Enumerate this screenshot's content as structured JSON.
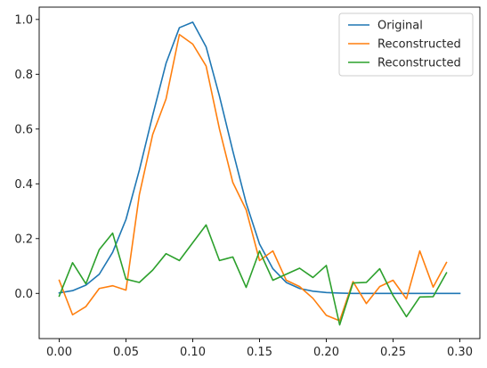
{
  "chart_data": {
    "type": "line",
    "title": "",
    "xlabel": "",
    "ylabel": "",
    "xlim": [
      -0.015,
      0.315
    ],
    "ylim": [
      -0.165,
      1.045
    ],
    "xticks": [
      0.0,
      0.05,
      0.1,
      0.15,
      0.2,
      0.25,
      0.3
    ],
    "xtick_labels": [
      "0.00",
      "0.05",
      "0.10",
      "0.15",
      "0.20",
      "0.25",
      "0.30"
    ],
    "yticks": [
      0.0,
      0.2,
      0.4,
      0.6,
      0.8,
      1.0
    ],
    "ytick_labels": [
      "0.0",
      "0.2",
      "0.4",
      "0.6",
      "0.8",
      "1.0"
    ],
    "grid": false,
    "legend_position": "top-right",
    "series": [
      {
        "name": "Original",
        "color": "#1f77b4",
        "x": [
          0.0,
          0.01,
          0.02,
          0.03,
          0.04,
          0.05,
          0.06,
          0.07,
          0.08,
          0.09,
          0.1,
          0.11,
          0.12,
          0.13,
          0.14,
          0.15,
          0.16,
          0.17,
          0.18,
          0.19,
          0.2,
          0.21,
          0.22,
          0.23,
          0.24,
          0.25,
          0.26,
          0.27,
          0.28,
          0.29,
          0.3
        ],
        "y": [
          0.002,
          0.01,
          0.03,
          0.07,
          0.15,
          0.27,
          0.45,
          0.65,
          0.84,
          0.97,
          0.99,
          0.9,
          0.72,
          0.52,
          0.33,
          0.18,
          0.09,
          0.04,
          0.018,
          0.008,
          0.003,
          0.001,
          0.0,
          0.0,
          0.0,
          0.0,
          0.0,
          0.0,
          0.0,
          0.0,
          0.0
        ]
      },
      {
        "name": "Reconstructed",
        "color": "#ff7f0e",
        "x": [
          0.0,
          0.01,
          0.02,
          0.03,
          0.04,
          0.05,
          0.06,
          0.07,
          0.08,
          0.09,
          0.1,
          0.11,
          0.12,
          0.13,
          0.14,
          0.15,
          0.16,
          0.17,
          0.18,
          0.19,
          0.2,
          0.21,
          0.22,
          0.23,
          0.24,
          0.25,
          0.26,
          0.27,
          0.28,
          0.29
        ],
        "y": [
          0.048,
          -0.078,
          -0.048,
          0.018,
          0.028,
          0.012,
          0.36,
          0.58,
          0.71,
          0.945,
          0.91,
          0.83,
          0.6,
          0.405,
          0.305,
          0.12,
          0.155,
          0.048,
          0.025,
          -0.018,
          -0.08,
          -0.1,
          0.043,
          -0.037,
          0.025,
          0.048,
          -0.02,
          0.155,
          0.023,
          0.113
        ]
      },
      {
        "name": "Reconstructed",
        "color": "#2ca02c",
        "x": [
          0.0,
          0.01,
          0.02,
          0.03,
          0.04,
          0.05,
          0.06,
          0.07,
          0.08,
          0.09,
          0.1,
          0.11,
          0.12,
          0.13,
          0.14,
          0.15,
          0.16,
          0.17,
          0.18,
          0.19,
          0.2,
          0.21,
          0.22,
          0.23,
          0.24,
          0.25,
          0.26,
          0.27,
          0.28,
          0.29
        ],
        "y": [
          -0.01,
          0.112,
          0.035,
          0.16,
          0.22,
          0.052,
          0.04,
          0.085,
          0.145,
          0.12,
          0.185,
          0.25,
          0.12,
          0.133,
          0.022,
          0.155,
          0.048,
          0.07,
          0.092,
          0.058,
          0.102,
          -0.115,
          0.038,
          0.04,
          0.09,
          -0.008,
          -0.085,
          -0.013,
          -0.012,
          0.075
        ]
      }
    ]
  }
}
